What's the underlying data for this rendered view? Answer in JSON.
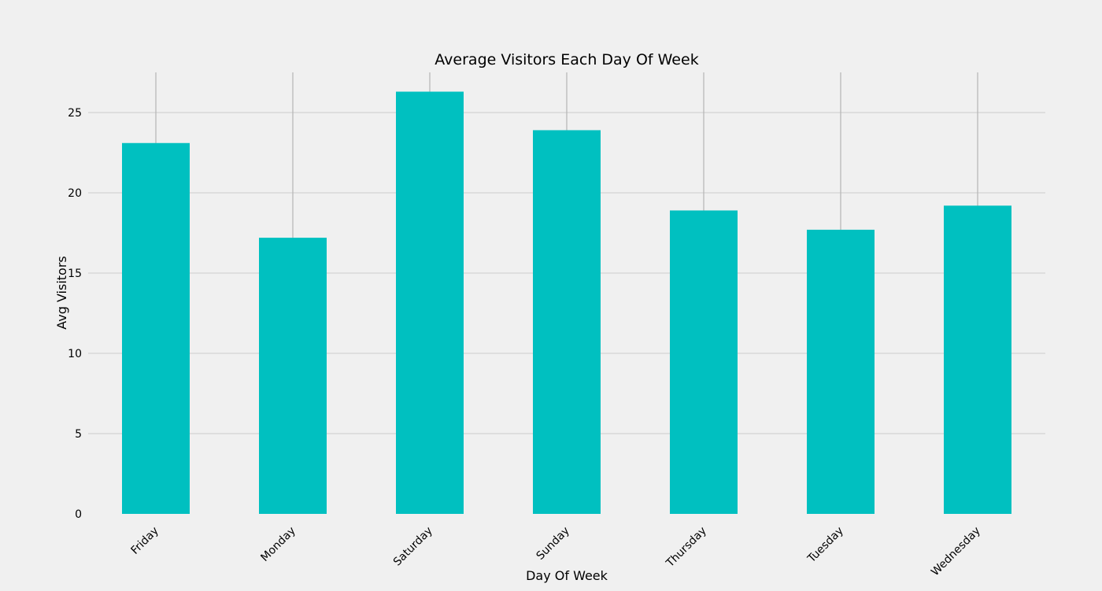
{
  "chart_data": {
    "type": "bar",
    "title": "Average Visitors Each Day Of Week",
    "xlabel": "Day Of Week",
    "ylabel": "Avg Visitors",
    "categories": [
      "Friday",
      "Monday",
      "Saturday",
      "Sunday",
      "Thursday",
      "Tuesday",
      "Wednesday"
    ],
    "values": [
      23.1,
      17.2,
      26.3,
      23.9,
      18.9,
      17.7,
      19.2
    ],
    "ylim": [
      0,
      27.5
    ],
    "yticks": [
      0,
      5,
      10,
      15,
      20,
      25
    ],
    "grid": true,
    "legend": "none",
    "colors": {
      "bar": "#00c0c0",
      "background": "#f0f0f0",
      "grid": "#cbcbcb"
    }
  }
}
